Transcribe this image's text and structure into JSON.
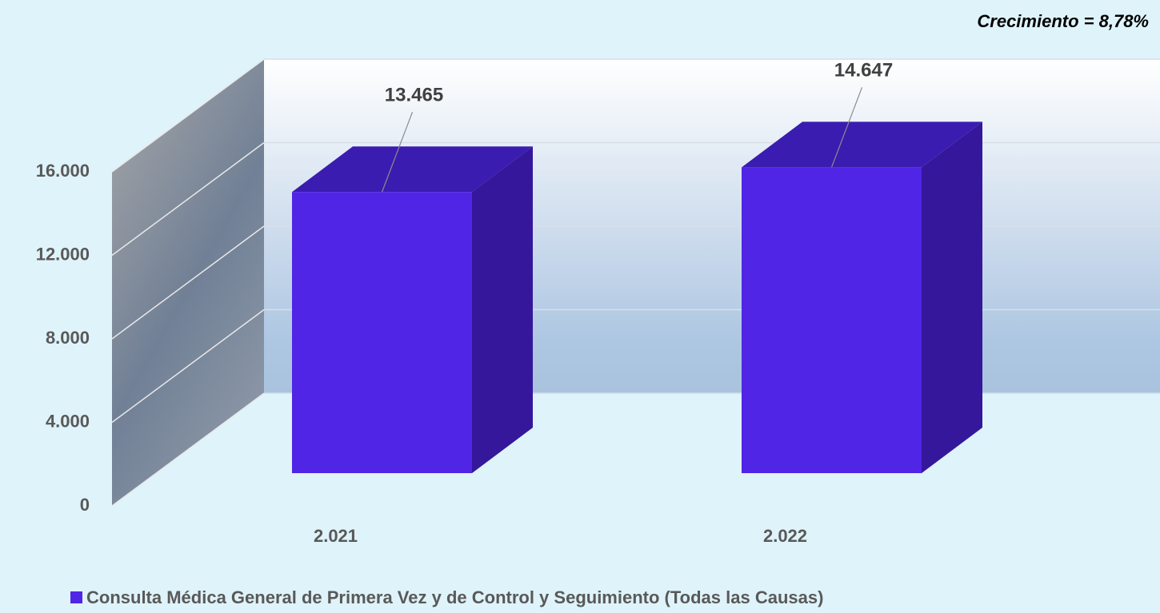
{
  "chart_data": {
    "type": "bar",
    "annotation": "Crecimiento = 8,78%",
    "categories": [
      "2.021",
      "2.022"
    ],
    "series": [
      {
        "name": "Consulta Médica General de Primera Vez y de Control y Seguimiento (Todas las Causas)",
        "color": "#5025e6",
        "values": [
          13465,
          14647
        ],
        "value_labels": [
          "13.465",
          "14.647"
        ]
      }
    ],
    "ylim": [
      0,
      16000
    ],
    "yticks": [
      0,
      {
        "value": 4000,
        "label": "4.000"
      },
      {
        "value": 8000,
        "label": "8.000"
      },
      {
        "value": 12000,
        "label": "12.000"
      },
      {
        "value": 16000,
        "label": "16.000"
      }
    ],
    "grid": true
  }
}
